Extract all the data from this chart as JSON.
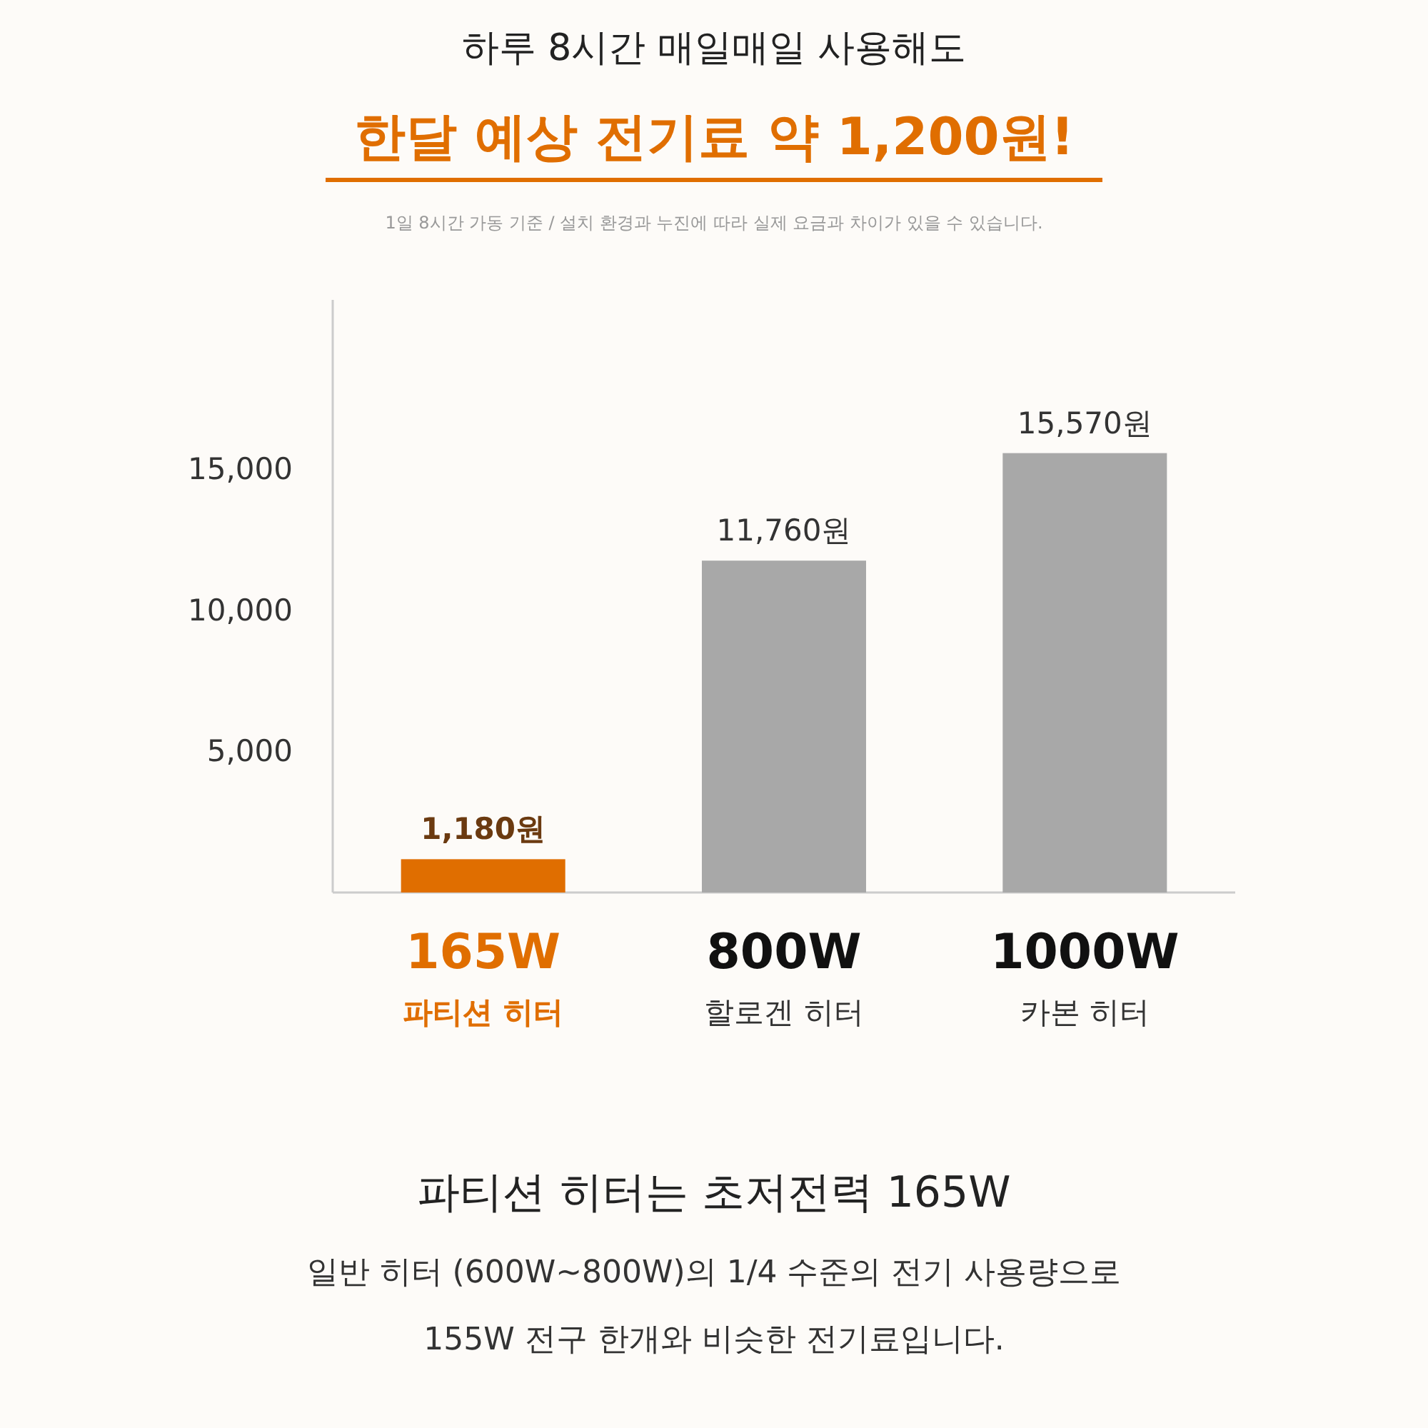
{
  "chart_data": {
    "type": "bar",
    "title": "하루 8시간 매일매일 사용해도",
    "subtitle": "한달 예상 전기료 약 1,200원!",
    "categories": [
      "165W\n파티션 히터",
      "800W\n할로겐 히터",
      "1000W\n카본 히터"
    ],
    "values": [
      1180,
      11760,
      15570
    ],
    "colors": [
      "#e06e00",
      "#a8a8a8",
      "#a8a8a8"
    ],
    "value_labels": [
      "1,180원",
      "11,760원",
      "15,570원"
    ],
    "ylim": [
      0,
      21000
    ],
    "yticks": [
      {
        "value": 5000,
        "label": "5,000"
      },
      {
        "value": 10000,
        "label": "10,000"
      },
      {
        "value": 15000,
        "label": "15,000"
      }
    ],
    "annotations": [
      "1일 8시간 가동 기준 / 설치 환경과 누진에 따라 실제 요금과 차이가 있을 수 있습니다.",
      "파티션 히터는 초저전력 165W",
      "일반 히터 (600W~800W)의 1/4 수준의 전기 사용량으로",
      "155W 전구 한개와 비슷한 전기료입니다."
    ]
  }
}
